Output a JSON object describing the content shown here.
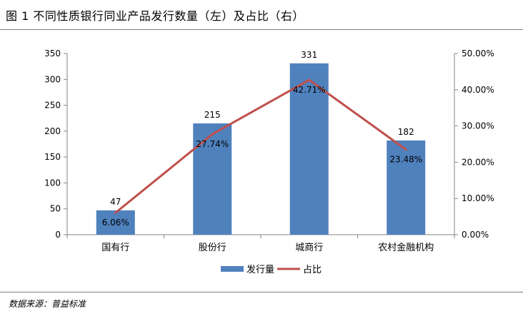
{
  "figure": {
    "title": "图 1 不同性质银行同业产品发行数量（左）及占比（右）",
    "source": "数据来源：普益标准"
  },
  "chart_data": {
    "type": "bar",
    "categories": [
      "国有行",
      "股份行",
      "城商行",
      "农村金融机构"
    ],
    "series": [
      {
        "name": "发行量",
        "type": "bar",
        "axis": "left",
        "values": [
          47,
          215,
          331,
          182
        ],
        "labels": [
          "47",
          "215",
          "331",
          "182"
        ],
        "color": "#4f81bd"
      },
      {
        "name": "占比",
        "type": "line",
        "axis": "right",
        "values": [
          6.06,
          27.74,
          42.71,
          23.48
        ],
        "labels": [
          "6.06%",
          "27.74%",
          "42.71%",
          "23.48%"
        ],
        "color": "#c0504d"
      }
    ],
    "y_left": {
      "ylim": [
        0,
        350
      ],
      "ticks": [
        "0",
        "50",
        "100",
        "150",
        "200",
        "250",
        "300",
        "350"
      ]
    },
    "y_right": {
      "ylim": [
        0,
        50
      ],
      "ticks": [
        "0.00%",
        "10.00%",
        "20.00%",
        "30.00%",
        "40.00%",
        "50.00%"
      ]
    },
    "grid": false,
    "legend_position": "bottom"
  }
}
